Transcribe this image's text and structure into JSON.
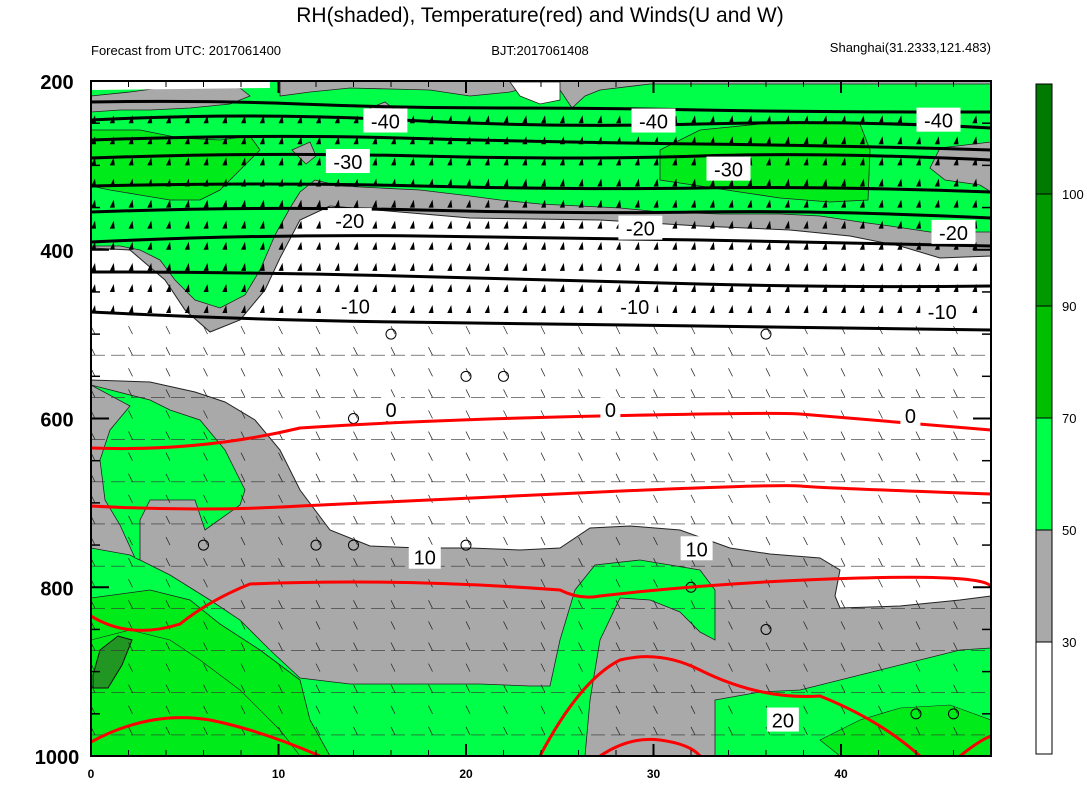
{
  "chart_data": {
    "type": "contour",
    "title": "RH(shaded), Temperature(red) and Winds(U and W)",
    "subtitle_left": "Forecast from UTC: 2017061400",
    "subtitle_center": "BJT:2017061408",
    "subtitle_right": "Shanghai(31.2333,121.483)",
    "x_ticks": [
      "0",
      "10",
      "20",
      "30",
      "40"
    ],
    "x_range": [
      0,
      48
    ],
    "y_ticks": [
      "200",
      "400",
      "600",
      "800",
      "1000"
    ],
    "y_range": [
      200,
      1000
    ],
    "y_axis": "pressure, inverted (200 at top, 1000 at bottom)",
    "rh_colorbar": {
      "levels": [
        30,
        50,
        70,
        90,
        100
      ],
      "tick_labels": [
        "30",
        "50",
        "70",
        "90",
        "100"
      ],
      "colors": [
        "#ffffff",
        "#a9a9a9",
        "#00ff48",
        "#00ec1a",
        "#00bf00",
        "#009900",
        "#007a00"
      ]
    },
    "temperature_contours": [
      {
        "level": -40,
        "color": "#000000",
        "labels": [
          {
            "text": "-40",
            "x": 15.7,
            "p": 248
          },
          {
            "text": "-40",
            "x": 30.0,
            "p": 248
          },
          {
            "text": "-40",
            "x": 45.2,
            "p": 247
          }
        ]
      },
      {
        "level": -30,
        "color": "#000000",
        "labels": [
          {
            "text": "-30",
            "x": 13.7,
            "p": 296
          },
          {
            "text": "-30",
            "x": 34.0,
            "p": 305
          }
        ]
      },
      {
        "level": -20,
        "color": "#000000",
        "labels": [
          {
            "text": "-20",
            "x": 13.8,
            "p": 366
          },
          {
            "text": "-20",
            "x": 29.3,
            "p": 375
          },
          {
            "text": "-20",
            "x": 46.0,
            "p": 380
          }
        ]
      },
      {
        "level": -10,
        "color": "#000000",
        "labels": [
          {
            "text": "-10",
            "x": 14.1,
            "p": 467
          },
          {
            "text": "-10",
            "x": 29.0,
            "p": 468
          },
          {
            "text": "-10",
            "x": 45.4,
            "p": 474
          }
        ]
      },
      {
        "level": 0,
        "color": "#000000",
        "labels": [
          {
            "text": "0",
            "x": 16.0,
            "p": 590
          },
          {
            "text": "0",
            "x": 27.7,
            "p": 590
          },
          {
            "text": "0",
            "x": 43.7,
            "p": 597
          }
        ]
      },
      {
        "level": 10,
        "color": "#ff0000",
        "labels": [
          {
            "text": "10",
            "x": 17.8,
            "p": 765
          },
          {
            "text": "10",
            "x": 32.3,
            "p": 755
          }
        ]
      },
      {
        "level": 20,
        "color": "#ff0000",
        "labels": [
          {
            "text": "20",
            "x": 36.9,
            "p": 958
          }
        ]
      }
    ],
    "wind_barbs": "barbs at every 2 x-units on pressure levels 200-1000 hPa every ~50 hPa; calm circles on some levels",
    "calm_markers": [
      {
        "x": 16,
        "p": 500
      },
      {
        "x": 36,
        "p": 500
      },
      {
        "x": 20,
        "p": 550
      },
      {
        "x": 22,
        "p": 550
      },
      {
        "x": 14,
        "p": 600
      },
      {
        "x": 16,
        "p": 600
      },
      {
        "x": 6,
        "p": 750
      },
      {
        "x": 12,
        "p": 750
      },
      {
        "x": 14,
        "p": 750
      },
      {
        "x": 20,
        "p": 750
      },
      {
        "x": 32,
        "p": 800
      },
      {
        "x": 36,
        "p": 850
      },
      {
        "x": 44,
        "p": 950
      },
      {
        "x": 46,
        "p": 950
      }
    ]
  },
  "colors": {
    "gray": "#a9a9a9",
    "green_light": "#00ff48",
    "green_mid": "#00ec1a",
    "green_dark": "#007a00",
    "red": "#ff0000"
  }
}
